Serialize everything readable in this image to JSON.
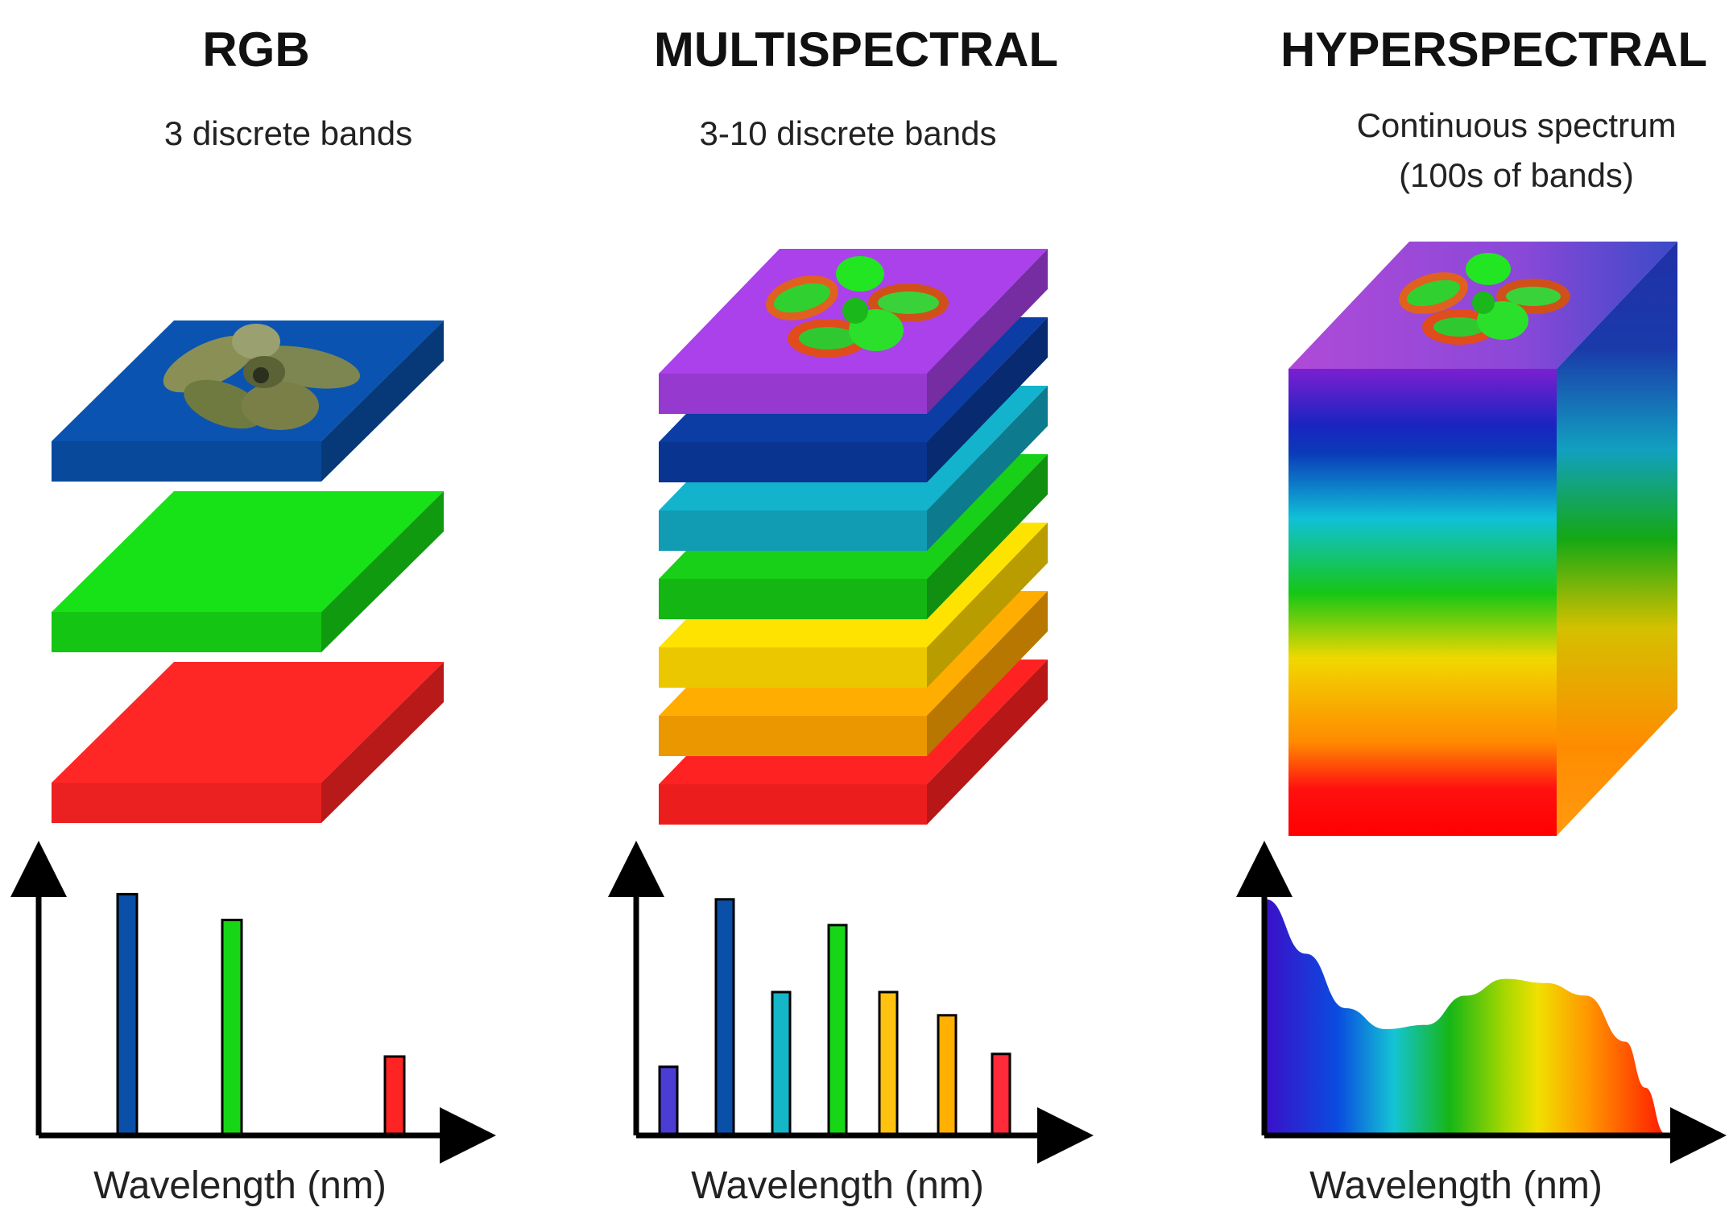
{
  "columns": [
    {
      "id": "rgb",
      "title": "RGB",
      "subtitle_lines": [
        "3 discrete bands"
      ],
      "layer_colors": [
        "#0a4fa8",
        "#16d616",
        "#ff2424"
      ],
      "chart_data": {
        "type": "bar",
        "xlabel": "Wavelength (nm)",
        "ylabel": "",
        "categories": [
          "blue",
          "green",
          "red"
        ],
        "values": [
          0.93,
          0.83,
          0.3
        ],
        "colors": [
          "#0a4fa8",
          "#16d616",
          "#ff2424"
        ]
      }
    },
    {
      "id": "multispectral",
      "title": "MULTISPECTRAL",
      "subtitle_lines": [
        "3-10 discrete bands"
      ],
      "layer_colors": [
        "#a33ee0",
        "#0a3a9c",
        "#12aac4",
        "#16c616",
        "#ffd800",
        "#ffa500",
        "#ff2020"
      ],
      "chart_data": {
        "type": "bar",
        "xlabel": "Wavelength (nm)",
        "ylabel": "",
        "categories": [
          "violet",
          "blue",
          "cyan",
          "green",
          "yellow",
          "orange",
          "red"
        ],
        "values": [
          0.26,
          0.91,
          0.55,
          0.81,
          0.55,
          0.46,
          0.31
        ],
        "colors": [
          "#4b3cd4",
          "#0a4fa8",
          "#14b6c8",
          "#16d616",
          "#ffc20e",
          "#ffb000",
          "#ff2a3a"
        ]
      }
    },
    {
      "id": "hyperspectral",
      "title": "HYPERSPECTRAL",
      "subtitle_lines": [
        "Continuous spectrum",
        "(100s of bands)"
      ],
      "cube_gradient": [
        "#7b1fd0",
        "#1435c8",
        "#10c0d8",
        "#16c616",
        "#f0d800",
        "#ff8a00",
        "#ff1010"
      ],
      "chart_data": {
        "type": "area",
        "xlabel": "Wavelength (nm)",
        "ylabel": "",
        "x": [
          0,
          0.1,
          0.2,
          0.3,
          0.4,
          0.5,
          0.6,
          0.7,
          0.8,
          0.9,
          0.95,
          1.0
        ],
        "y": [
          0.56,
          0.43,
          0.3,
          0.25,
          0.26,
          0.33,
          0.37,
          0.36,
          0.33,
          0.22,
          0.11,
          0.0
        ],
        "gradient": [
          "#3a10c8",
          "#0a6cf0",
          "#14c4d4",
          "#16c616",
          "#f0e000",
          "#ff9a00",
          "#ff1a00"
        ]
      }
    }
  ]
}
